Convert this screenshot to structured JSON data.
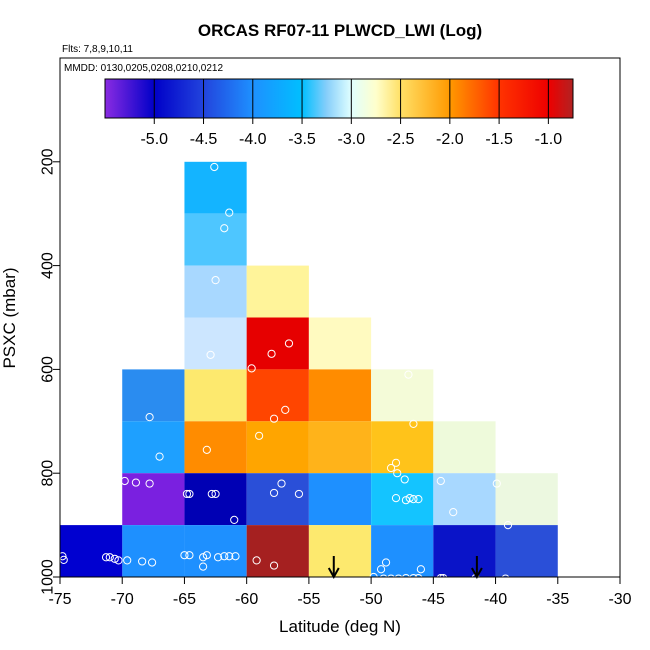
{
  "chart_data": {
    "type": "heatmap",
    "title": "ORCAS RF07-11 PLWCD_LWI (Log)",
    "flights_note": "Flts: 7,8,9,10,11",
    "dates_note": "MMDD: 0130,0205,0208,0210,0212",
    "xlabel": "Latitude (deg N)",
    "ylabel": "PSXC (mbar)",
    "xlim": [
      -75,
      -30
    ],
    "ylim": [
      1000,
      0
    ],
    "x_ticks": [
      "-75",
      "-70",
      "-65",
      "-60",
      "-55",
      "-50",
      "-45",
      "-40",
      "-35",
      "-30"
    ],
    "y_ticks": [
      "200",
      "400",
      "600",
      "800",
      "1000"
    ],
    "colorbar": {
      "range": [
        -5.5,
        -0.75
      ],
      "ticks": [
        "-5.0",
        "-4.5",
        "-4.0",
        "-3.5",
        "-3.0",
        "-2.5",
        "-2.0",
        "-1.5",
        "-1.0"
      ],
      "stops": [
        {
          "v": -5.5,
          "color": "#8a2be2"
        },
        {
          "v": -5.0,
          "color": "#0000c8"
        },
        {
          "v": -4.5,
          "color": "#2244dd"
        },
        {
          "v": -4.0,
          "color": "#1e90ff"
        },
        {
          "v": -3.5,
          "color": "#00bfff"
        },
        {
          "v": -3.25,
          "color": "#87cefa"
        },
        {
          "v": -3.0,
          "color": "#e0ffff"
        },
        {
          "v": -2.75,
          "color": "#ffffcc"
        },
        {
          "v": -2.5,
          "color": "#ffe066"
        },
        {
          "v": -2.0,
          "color": "#ff9900"
        },
        {
          "v": -1.5,
          "color": "#ff3300"
        },
        {
          "v": -1.0,
          "color": "#ee0000"
        },
        {
          "v": -0.75,
          "color": "#b22222"
        }
      ]
    },
    "cells": [
      {
        "x0": -65,
        "x1": -60,
        "p0": 200,
        "p1": 300,
        "color": "#14b4ff"
      },
      {
        "x0": -65,
        "x1": -60,
        "p0": 300,
        "p1": 400,
        "color": "#4ec6ff"
      },
      {
        "x0": -65,
        "x1": -60,
        "p0": 400,
        "p1": 500,
        "color": "#a8d8ff"
      },
      {
        "x0": -65,
        "x1": -60,
        "p0": 500,
        "p1": 600,
        "color": "#cce6ff"
      },
      {
        "x0": -65,
        "x1": -60,
        "p0": 600,
        "p1": 700,
        "color": "#fde96e"
      },
      {
        "x0": -65,
        "x1": -60,
        "p0": 700,
        "p1": 800,
        "color": "#ff8c00"
      },
      {
        "x0": -65,
        "x1": -60,
        "p0": 800,
        "p1": 900,
        "color": "#0000b4"
      },
      {
        "x0": -65,
        "x1": -60,
        "p0": 900,
        "p1": 1000,
        "color": "#1e90ff"
      },
      {
        "x0": -60,
        "x1": -55,
        "p0": 400,
        "p1": 500,
        "color": "#fff49a"
      },
      {
        "x0": -60,
        "x1": -55,
        "p0": 500,
        "p1": 600,
        "color": "#e60000"
      },
      {
        "x0": -60,
        "x1": -55,
        "p0": 600,
        "p1": 700,
        "color": "#ff4500"
      },
      {
        "x0": -60,
        "x1": -55,
        "p0": 700,
        "p1": 800,
        "color": "#ffa500"
      },
      {
        "x0": -60,
        "x1": -55,
        "p0": 800,
        "p1": 900,
        "color": "#2a4fd8"
      },
      {
        "x0": -60,
        "x1": -55,
        "p0": 900,
        "p1": 1000,
        "color": "#a52020"
      },
      {
        "x0": -55,
        "x1": -50,
        "p0": 500,
        "p1": 600,
        "color": "#fffac0"
      },
      {
        "x0": -55,
        "x1": -50,
        "p0": 600,
        "p1": 700,
        "color": "#ff8c00"
      },
      {
        "x0": -55,
        "x1": -50,
        "p0": 700,
        "p1": 800,
        "color": "#ffb31a"
      },
      {
        "x0": -55,
        "x1": -50,
        "p0": 800,
        "p1": 900,
        "color": "#1e90ff"
      },
      {
        "x0": -55,
        "x1": -50,
        "p0": 900,
        "p1": 1000,
        "color": "#fde96e"
      },
      {
        "x0": -50,
        "x1": -45,
        "p0": 600,
        "p1": 700,
        "color": "#f4fbd8"
      },
      {
        "x0": -50,
        "x1": -45,
        "p0": 700,
        "p1": 800,
        "color": "#ffc31a"
      },
      {
        "x0": -50,
        "x1": -45,
        "p0": 800,
        "p1": 900,
        "color": "#14c4ff"
      },
      {
        "x0": -50,
        "x1": -45,
        "p0": 900,
        "p1": 1000,
        "color": "#1e90ff"
      },
      {
        "x0": -45,
        "x1": -40,
        "p0": 700,
        "p1": 800,
        "color": "#eefadb"
      },
      {
        "x0": -45,
        "x1": -40,
        "p0": 800,
        "p1": 900,
        "color": "#a8d8ff"
      },
      {
        "x0": -45,
        "x1": -40,
        "p0": 900,
        "p1": 1000,
        "color": "#0a14c8"
      },
      {
        "x0": -40,
        "x1": -35,
        "p0": 800,
        "p1": 900,
        "color": "#ecf8e0"
      },
      {
        "x0": -40,
        "x1": -35,
        "p0": 900,
        "p1": 1000,
        "color": "#2a4fd8"
      },
      {
        "x0": -70,
        "x1": -65,
        "p0": 600,
        "p1": 700,
        "color": "#2a8cf0"
      },
      {
        "x0": -70,
        "x1": -65,
        "p0": 700,
        "p1": 800,
        "color": "#1ea0ff"
      },
      {
        "x0": -70,
        "x1": -65,
        "p0": 800,
        "p1": 900,
        "color": "#7a20e0"
      },
      {
        "x0": -70,
        "x1": -65,
        "p0": 900,
        "p1": 1000,
        "color": "#1e90ff"
      },
      {
        "x0": -75,
        "x1": -70,
        "p0": 900,
        "p1": 1000,
        "color": "#0000d0"
      }
    ],
    "points": [
      {
        "lat": -62.6,
        "p": 210
      },
      {
        "lat": -61.4,
        "p": 298
      },
      {
        "lat": -61.8,
        "p": 328
      },
      {
        "lat": -62.5,
        "p": 428
      },
      {
        "lat": -62.9,
        "p": 572
      },
      {
        "lat": -59.6,
        "p": 598
      },
      {
        "lat": -58.0,
        "p": 570
      },
      {
        "lat": -56.6,
        "p": 550
      },
      {
        "lat": -56.9,
        "p": 678
      },
      {
        "lat": -57.8,
        "p": 695
      },
      {
        "lat": -59.0,
        "p": 728
      },
      {
        "lat": -63.2,
        "p": 755
      },
      {
        "lat": -67.8,
        "p": 692
      },
      {
        "lat": -67.0,
        "p": 768
      },
      {
        "lat": -69.8,
        "p": 815
      },
      {
        "lat": -68.9,
        "p": 818
      },
      {
        "lat": -67.8,
        "p": 820
      },
      {
        "lat": -64.8,
        "p": 840
      },
      {
        "lat": -64.6,
        "p": 840
      },
      {
        "lat": -62.8,
        "p": 840
      },
      {
        "lat": -62.5,
        "p": 840
      },
      {
        "lat": -61.0,
        "p": 890
      },
      {
        "lat": -57.8,
        "p": 838
      },
      {
        "lat": -57.2,
        "p": 820
      },
      {
        "lat": -55.8,
        "p": 840
      },
      {
        "lat": -48.4,
        "p": 790
      },
      {
        "lat": -48.0,
        "p": 780
      },
      {
        "lat": -47.3,
        "p": 812
      },
      {
        "lat": -47.9,
        "p": 800
      },
      {
        "lat": -46.6,
        "p": 705
      },
      {
        "lat": -47.0,
        "p": 610
      },
      {
        "lat": -48.0,
        "p": 848
      },
      {
        "lat": -47.2,
        "p": 852
      },
      {
        "lat": -46.9,
        "p": 848
      },
      {
        "lat": -46.6,
        "p": 850
      },
      {
        "lat": -46.2,
        "p": 850
      },
      {
        "lat": -44.4,
        "p": 815
      },
      {
        "lat": -43.4,
        "p": 875
      },
      {
        "lat": -39.9,
        "p": 820
      },
      {
        "lat": -39.0,
        "p": 900
      },
      {
        "lat": -74.8,
        "p": 960
      },
      {
        "lat": -74.7,
        "p": 967
      },
      {
        "lat": -71.3,
        "p": 962
      },
      {
        "lat": -71.0,
        "p": 962
      },
      {
        "lat": -70.6,
        "p": 965
      },
      {
        "lat": -70.3,
        "p": 968
      },
      {
        "lat": -69.6,
        "p": 968
      },
      {
        "lat": -68.4,
        "p": 970
      },
      {
        "lat": -67.6,
        "p": 972
      },
      {
        "lat": -65.0,
        "p": 958
      },
      {
        "lat": -64.6,
        "p": 958
      },
      {
        "lat": -63.5,
        "p": 962
      },
      {
        "lat": -63.2,
        "p": 958
      },
      {
        "lat": -62.3,
        "p": 962
      },
      {
        "lat": -61.8,
        "p": 960
      },
      {
        "lat": -61.4,
        "p": 960
      },
      {
        "lat": -60.9,
        "p": 960
      },
      {
        "lat": -63.5,
        "p": 980
      },
      {
        "lat": -59.2,
        "p": 968
      },
      {
        "lat": -57.8,
        "p": 978
      },
      {
        "lat": -49.8,
        "p": 1000
      },
      {
        "lat": -49.0,
        "p": 1003
      },
      {
        "lat": -48.4,
        "p": 1003
      },
      {
        "lat": -47.8,
        "p": 1003
      },
      {
        "lat": -47.2,
        "p": 1002
      },
      {
        "lat": -46.6,
        "p": 1002
      },
      {
        "lat": -46.2,
        "p": 1002
      },
      {
        "lat": -46.0,
        "p": 985
      },
      {
        "lat": -48.8,
        "p": 972
      },
      {
        "lat": -49.2,
        "p": 985
      },
      {
        "lat": -44.4,
        "p": 1002
      },
      {
        "lat": -44.2,
        "p": 1002
      },
      {
        "lat": -41.6,
        "p": 1002
      },
      {
        "lat": -39.2,
        "p": 1003
      }
    ],
    "arrows_lat": [
      -53.0,
      -41.5
    ]
  }
}
